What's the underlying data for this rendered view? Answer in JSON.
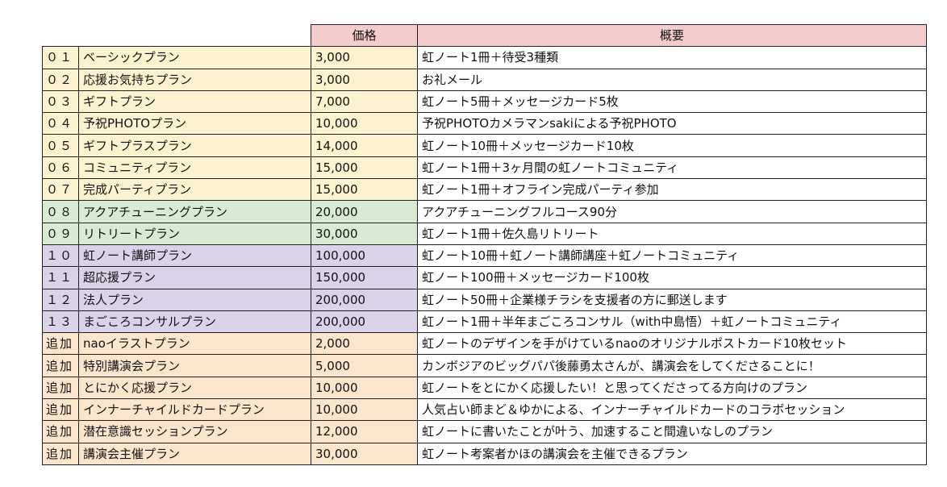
{
  "header": {
    "price": "価格",
    "summary": "概要"
  },
  "colors": {
    "header": "#f4cccc",
    "yellow": "#fdf2cf",
    "green": "#d9ead3",
    "purple": "#d9d2e9",
    "orange": "#fce5cd"
  },
  "rows": [
    {
      "no": "０１",
      "plan": "ベーシックプラン",
      "price": "3,000",
      "summary": "虹ノート1冊＋待受3種類",
      "group": "yellow"
    },
    {
      "no": "０２",
      "plan": "応援お気持ちプラン",
      "price": "3,000",
      "summary": "お礼メール",
      "group": "yellow"
    },
    {
      "no": "０３",
      "plan": "ギフトプラン",
      "price": "7,000",
      "summary": "虹ノート5冊＋メッセージカード5枚",
      "group": "yellow"
    },
    {
      "no": "０４",
      "plan": "予祝PHOTOプラン",
      "price": "10,000",
      "summary": "予祝PHOTOカメラマンsakiによる予祝PHOTO",
      "group": "yellow"
    },
    {
      "no": "０５",
      "plan": "ギフトプラスプラン",
      "price": "14,000",
      "summary": "虹ノート10冊＋メッセージカード10枚",
      "group": "yellow"
    },
    {
      "no": "０６",
      "plan": "コミュニティプラン",
      "price": "15,000",
      "summary": "虹ノート1冊＋3ヶ月間の虹ノートコミュニティ",
      "group": "yellow"
    },
    {
      "no": "０７",
      "plan": "完成パーティプラン",
      "price": "15,000",
      "summary": "虹ノート1冊＋オフライン完成パーティ参加",
      "group": "yellow"
    },
    {
      "no": "０８",
      "plan": "アクアチューニングプラン",
      "price": "20,000",
      "summary": "アクアチューニングフルコース90分",
      "group": "green"
    },
    {
      "no": "０９",
      "plan": "リトリートプラン",
      "price": "30,000",
      "summary": "虹ノート1冊＋佐久島リトリート",
      "group": "green"
    },
    {
      "no": "１０",
      "plan": "虹ノート講師プラン",
      "price": "100,000",
      "summary": "虹ノート10冊＋虹ノート講師講座＋虹ノートコミュニティ",
      "group": "purple"
    },
    {
      "no": "１１",
      "plan": "超応援プラン",
      "price": "150,000",
      "summary": "虹ノート100冊＋メッセージカード100枚",
      "group": "purple"
    },
    {
      "no": "１２",
      "plan": "法人プラン",
      "price": "200,000",
      "summary": "虹ノート50冊＋企業様チラシを支援者の方に郵送します",
      "group": "purple"
    },
    {
      "no": "１３",
      "plan": "まごころコンサルプラン",
      "price": "200,000",
      "summary": "虹ノート1冊＋半年まごころコンサル（with中島悟）＋虹ノートコミュニティ",
      "group": "purple"
    },
    {
      "no": "追加",
      "plan": "naoイラストプラン",
      "price": "2,000",
      "summary": "虹ノートのデザインを手がけているnaoのオリジナルポストカード10枚セット",
      "group": "orange"
    },
    {
      "no": "追加",
      "plan": "特別講演会プラン",
      "price": "5,000",
      "summary": "カンボジアのビッグパパ後藤勇太さんが、講演会をしてくださることに！",
      "group": "orange"
    },
    {
      "no": "追加",
      "plan": "とにかく応援プラン",
      "price": "10,000",
      "summary": "虹ノートをとにかく応援したい！と思ってくださってる方向けのプラン",
      "group": "orange"
    },
    {
      "no": "追加",
      "plan": "インナーチャイルドカードプラン",
      "price": "10,000",
      "summary": "人気占い師まど＆ゆかによる、インナーチャイルドカードのコラボセッション",
      "group": "orange"
    },
    {
      "no": "追加",
      "plan": "潜在意識セッションプラン",
      "price": "12,000",
      "summary": "虹ノートに書いたことが叶う、加速すること間違いなしのプラン",
      "group": "orange"
    },
    {
      "no": "追加",
      "plan": "講演会主催プラン",
      "price": "30,000",
      "summary": "虹ノート考案者かほの講演会を主催できるプラン",
      "group": "orange"
    }
  ]
}
